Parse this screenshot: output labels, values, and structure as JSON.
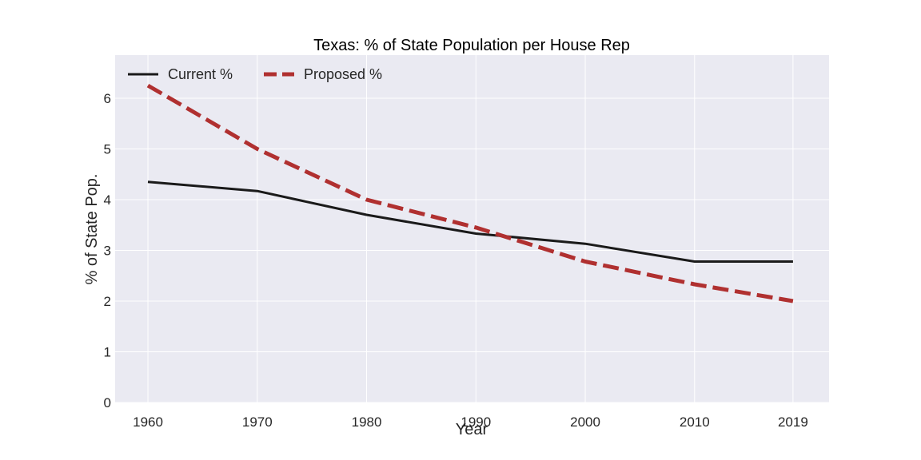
{
  "chart_data": {
    "type": "line",
    "title": "Texas: % of State Population per House Rep",
    "xlabel": "Year",
    "ylabel": "% of State Pop.",
    "x": [
      1960,
      1970,
      1980,
      1990,
      2000,
      2010,
      2019
    ],
    "x_tick_labels": [
      "1960",
      "1970",
      "1980",
      "1990",
      "2000",
      "2010",
      "2019"
    ],
    "xlim": [
      1957,
      2022.3
    ],
    "ylim": [
      0,
      6.85
    ],
    "y_ticks": [
      0,
      1,
      2,
      3,
      4,
      5,
      6
    ],
    "y_tick_labels": [
      "0",
      "1",
      "2",
      "3",
      "4",
      "5",
      "6"
    ],
    "grid": true,
    "legend_position": "top-left",
    "background_color": "#eaeaf2",
    "grid_color": "#ffffff",
    "series": [
      {
        "name": "Current %",
        "color": "#1a1a1a",
        "style": "solid",
        "values": [
          4.35,
          4.17,
          3.7,
          3.33,
          3.13,
          2.78,
          2.78
        ]
      },
      {
        "name": "Proposed %",
        "color": "#b03030",
        "style": "dashed",
        "values": [
          6.25,
          5.0,
          4.0,
          3.45,
          2.78,
          2.33,
          2.0
        ]
      }
    ]
  }
}
